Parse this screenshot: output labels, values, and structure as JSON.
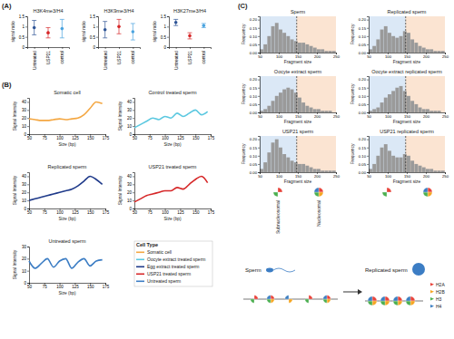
{
  "panel_labels": [
    "(A)",
    "(B)",
    "(C)"
  ],
  "chart_data": [
    {
      "type": "scatter",
      "title": "H3K4me3/H4",
      "y_label": "signal ratio",
      "categories": [
        "Untreated",
        "USP21",
        "control"
      ],
      "values": [
        0.95,
        0.7,
        0.9
      ],
      "errors": [
        0.35,
        0.25,
        0.45
      ],
      "colors": [
        "#2f5597",
        "#d62728",
        "#4aa3df"
      ],
      "ylim": [
        0,
        1.5
      ],
      "yticks": [
        0,
        0.5,
        1,
        1.5
      ]
    },
    {
      "type": "scatter",
      "title": "H3K9me3/H4",
      "y_label": "signal ratio",
      "categories": [
        "Untreated",
        "USP21",
        "control"
      ],
      "values": [
        0.85,
        1.0,
        0.75
      ],
      "errors": [
        0.4,
        0.35,
        0.4
      ],
      "colors": [
        "#2f5597",
        "#d62728",
        "#4aa3df"
      ],
      "ylim": [
        0,
        1.5
      ],
      "yticks": [
        0,
        0.5,
        1,
        1.5
      ]
    },
    {
      "type": "scatter",
      "title": "H3K27me3/H4",
      "y_label": "signal ratio",
      "categories": [
        "Untreated",
        "USP21",
        "control"
      ],
      "values": [
        1.2,
        0.55,
        1.05
      ],
      "errors": [
        0.15,
        0.15,
        0.1
      ],
      "colors": [
        "#2f5597",
        "#d62728",
        "#4aa3df"
      ],
      "ylim": [
        0,
        1.5
      ],
      "yticks": [
        0,
        0.5,
        1,
        1.5
      ]
    },
    {
      "type": "line",
      "title": "Somatic cell",
      "x_label": "Size (bp)",
      "y_label": "Signal Intensity",
      "x": [
        50,
        60,
        70,
        80,
        90,
        100,
        110,
        120,
        130,
        140,
        150,
        160,
        170
      ],
      "values": [
        19,
        18,
        17,
        17,
        18,
        19,
        18,
        19,
        20,
        24,
        32,
        40,
        38
      ],
      "color": "#f4a742",
      "xlim": [
        50,
        175
      ],
      "xticks": [
        50,
        75,
        100,
        125,
        150,
        175
      ],
      "ylim": [
        0,
        45
      ],
      "yticks": [
        0,
        10,
        20,
        30,
        40
      ]
    },
    {
      "type": "line",
      "title": "Control treated sperm",
      "x_label": "Size (bp)",
      "y_label": "Signal Intensity",
      "x": [
        50,
        60,
        70,
        80,
        90,
        100,
        110,
        120,
        130,
        140,
        150,
        160,
        170
      ],
      "values": [
        8,
        12,
        16,
        20,
        18,
        22,
        20,
        26,
        22,
        26,
        30,
        24,
        28
      ],
      "color": "#5bc8e0",
      "xlim": [
        50,
        175
      ],
      "xticks": [
        50,
        75,
        100,
        125,
        150,
        175
      ],
      "ylim": [
        0,
        45
      ],
      "yticks": [
        0,
        10,
        20,
        30,
        40
      ]
    },
    {
      "type": "line",
      "title": "Replicated sperm",
      "x_label": "Size (bp)",
      "y_label": "Signal Intensity",
      "x": [
        50,
        60,
        70,
        80,
        90,
        100,
        110,
        120,
        130,
        140,
        150,
        160,
        170
      ],
      "values": [
        10,
        12,
        14,
        16,
        18,
        20,
        22,
        24,
        28,
        34,
        40,
        36,
        30
      ],
      "color": "#1f3a8a",
      "xlim": [
        50,
        175
      ],
      "xticks": [
        50,
        75,
        100,
        125,
        150,
        175
      ],
      "ylim": [
        0,
        45
      ],
      "yticks": [
        0,
        10,
        20,
        30,
        40
      ]
    },
    {
      "type": "line",
      "title": "USP21 treated sperm",
      "x_label": "Size (bp)",
      "y_label": "Signal Intensity",
      "x": [
        50,
        60,
        70,
        80,
        90,
        100,
        110,
        120,
        130,
        140,
        150,
        160,
        170
      ],
      "values": [
        8,
        12,
        16,
        18,
        20,
        22,
        22,
        26,
        24,
        30,
        36,
        40,
        32
      ],
      "color": "#d62728",
      "xlim": [
        50,
        175
      ],
      "xticks": [
        50,
        75,
        100,
        125,
        150,
        175
      ],
      "ylim": [
        0,
        45
      ],
      "yticks": [
        0,
        10,
        20,
        30,
        40
      ]
    },
    {
      "type": "line",
      "title": "Untreated sperm",
      "x_label": "Size (bp)",
      "y_label": "Signal Intensity",
      "x": [
        50,
        60,
        70,
        80,
        90,
        100,
        110,
        120,
        130,
        140,
        150,
        160,
        170
      ],
      "values": [
        18,
        12,
        16,
        20,
        13,
        18,
        20,
        12,
        17,
        20,
        14,
        18,
        19
      ],
      "color": "#3c7dc4",
      "xlim": [
        50,
        175
      ],
      "xticks": [
        50,
        75,
        100,
        125,
        150,
        175
      ],
      "ylim": [
        0,
        30
      ],
      "yticks": [
        0,
        10,
        20,
        30
      ]
    },
    {
      "type": "histogram",
      "title": "Sperm",
      "x_label": "Fragment size",
      "y_label": "Frequency",
      "bins": [
        50,
        60,
        70,
        80,
        90,
        100,
        110,
        120,
        130,
        140,
        150,
        160,
        170,
        180,
        190,
        200,
        210,
        220,
        230,
        240,
        250
      ],
      "values": [
        0.02,
        0.05,
        0.1,
        0.16,
        0.18,
        0.14,
        0.12,
        0.1,
        0.08,
        0.07,
        0.06,
        0.06,
        0.05,
        0.04,
        0.03,
        0.02,
        0.02,
        0.01,
        0.01,
        0.01
      ],
      "threshold": 147,
      "color": "#9a9a9a",
      "xlim": [
        50,
        250
      ],
      "xticks": [
        50,
        100,
        150,
        200,
        250
      ],
      "ylim": [
        0,
        0.22
      ],
      "yticks": [
        {
          "value": 0,
          "label": "0.00"
        },
        0.05,
        {
          "value": 0.1,
          "label": "0.10"
        },
        0.15,
        {
          "value": 0.2,
          "label": "0.20"
        }
      ]
    },
    {
      "type": "histogram",
      "title": "Replicated sperm",
      "x_label": "Fragment size",
      "y_label": "Frequency",
      "bins": [
        50,
        60,
        70,
        80,
        90,
        100,
        110,
        120,
        130,
        140,
        150,
        160,
        170,
        180,
        190,
        200,
        210,
        220,
        230,
        240,
        250
      ],
      "values": [
        0.02,
        0.04,
        0.08,
        0.14,
        0.16,
        0.12,
        0.1,
        0.09,
        0.1,
        0.13,
        0.12,
        0.08,
        0.06,
        0.04,
        0.03,
        0.02,
        0.02,
        0.01,
        0.01,
        0.01
      ],
      "threshold": 147,
      "color": "#9a9a9a",
      "xlim": [
        50,
        250
      ],
      "xticks": [
        50,
        100,
        150,
        200,
        250
      ],
      "ylim": [
        0,
        0.22
      ],
      "yticks": [
        {
          "value": 0,
          "label": "0.00"
        },
        0.05,
        {
          "value": 0.1,
          "label": "0.10"
        },
        0.15,
        {
          "value": 0.2,
          "label": "0.20"
        }
      ]
    },
    {
      "type": "histogram",
      "title": "Oocyte extract sperm",
      "x_label": "Fragment size",
      "y_label": "Frequency",
      "bins": [
        50,
        60,
        70,
        80,
        90,
        100,
        110,
        120,
        130,
        140,
        150,
        160,
        170,
        180,
        190,
        200,
        210,
        220,
        230,
        240,
        250
      ],
      "values": [
        0.01,
        0.02,
        0.04,
        0.07,
        0.1,
        0.12,
        0.14,
        0.15,
        0.14,
        0.12,
        0.09,
        0.06,
        0.04,
        0.03,
        0.02,
        0.02,
        0.01,
        0.01,
        0.01,
        0
      ],
      "threshold": 147,
      "color": "#9a9a9a",
      "xlim": [
        50,
        250
      ],
      "xticks": [
        50,
        100,
        150,
        200,
        250
      ],
      "ylim": [
        0,
        0.22
      ],
      "yticks": [
        {
          "value": 0,
          "label": "0.00"
        },
        0.05,
        {
          "value": 0.1,
          "label": "0.10"
        },
        0.15,
        {
          "value": 0.2,
          "label": "0.20"
        }
      ]
    },
    {
      "type": "histogram",
      "title": "Oocyte extract replicated sperm",
      "x_label": "Fragment size",
      "y_label": "Frequency",
      "bins": [
        50,
        60,
        70,
        80,
        90,
        100,
        110,
        120,
        130,
        140,
        150,
        160,
        170,
        180,
        190,
        200,
        210,
        220,
        230,
        240,
        250
      ],
      "values": [
        0.01,
        0.02,
        0.03,
        0.06,
        0.09,
        0.11,
        0.13,
        0.15,
        0.16,
        0.13,
        0.1,
        0.07,
        0.05,
        0.03,
        0.02,
        0.02,
        0.01,
        0.01,
        0.01,
        0
      ],
      "threshold": 147,
      "color": "#9a9a9a",
      "xlim": [
        50,
        250
      ],
      "xticks": [
        50,
        100,
        150,
        200,
        250
      ],
      "ylim": [
        0,
        0.22
      ],
      "yticks": [
        {
          "value": 0,
          "label": "0.00"
        },
        0.05,
        {
          "value": 0.1,
          "label": "0.10"
        },
        0.15,
        {
          "value": 0.2,
          "label": "0.20"
        }
      ]
    },
    {
      "type": "histogram",
      "title": "USP21 sperm",
      "x_label": "Fragment size",
      "y_label": "Frequency",
      "bins": [
        50,
        60,
        70,
        80,
        90,
        100,
        110,
        120,
        130,
        140,
        150,
        160,
        170,
        180,
        190,
        200,
        210,
        220,
        230,
        240,
        250
      ],
      "values": [
        0.02,
        0.06,
        0.12,
        0.18,
        0.2,
        0.15,
        0.11,
        0.09,
        0.07,
        0.06,
        0.05,
        0.05,
        0.04,
        0.03,
        0.02,
        0.02,
        0.01,
        0.01,
        0.01,
        0.01
      ],
      "threshold": 147,
      "color": "#9a9a9a",
      "xlim": [
        50,
        250
      ],
      "xticks": [
        50,
        100,
        150,
        200,
        250
      ],
      "ylim": [
        0,
        0.22
      ],
      "yticks": [
        {
          "value": 0,
          "label": "0.00"
        },
        0.05,
        {
          "value": 0.1,
          "label": "0.10"
        },
        0.15,
        {
          "value": 0.2,
          "label": "0.20"
        }
      ]
    },
    {
      "type": "histogram",
      "title": "USP21 replicated sperm",
      "x_label": "Fragment size",
      "y_label": "Frequency",
      "bins": [
        50,
        60,
        70,
        80,
        90,
        100,
        110,
        120,
        130,
        140,
        150,
        160,
        170,
        180,
        190,
        200,
        210,
        220,
        230,
        240,
        250
      ],
      "values": [
        0.02,
        0.05,
        0.1,
        0.15,
        0.17,
        0.13,
        0.1,
        0.09,
        0.09,
        0.11,
        0.1,
        0.07,
        0.05,
        0.04,
        0.03,
        0.02,
        0.02,
        0.01,
        0.01,
        0.01
      ],
      "threshold": 147,
      "color": "#9a9a9a",
      "xlim": [
        50,
        250
      ],
      "xticks": [
        50,
        100,
        150,
        200,
        250
      ],
      "ylim": [
        0,
        0.22
      ],
      "yticks": [
        {
          "value": 0,
          "label": "0.00"
        },
        0.05,
        {
          "value": 0.1,
          "label": "0.10"
        },
        0.15,
        {
          "value": 0.2,
          "label": "0.20"
        }
      ]
    }
  ],
  "legend": {
    "title": "Cell Type",
    "items": [
      {
        "name": "Somatic cell",
        "color": "#f4a742"
      },
      {
        "name": "Oocyte extract treated sperm",
        "color": "#5bc8e0"
      },
      {
        "name": "Egg extract treated sperm",
        "color": "#1f3a8a"
      },
      {
        "name": "USP21 treated sperm",
        "color": "#d62728"
      },
      {
        "name": "Untreated sperm",
        "color": "#3c7dc4"
      }
    ]
  },
  "diagram": {
    "column_labels": [
      "Subnucleosomal",
      "Nucleosomal"
    ],
    "before": "Sperm",
    "after": "Replicated sperm",
    "histones": [
      {
        "name": "H2A",
        "color": "#e8433a"
      },
      {
        "name": "H2B",
        "color": "#f5a623"
      },
      {
        "name": "H3",
        "color": "#4caf50"
      },
      {
        "name": "H4",
        "color": "#3d7fc1"
      }
    ]
  }
}
